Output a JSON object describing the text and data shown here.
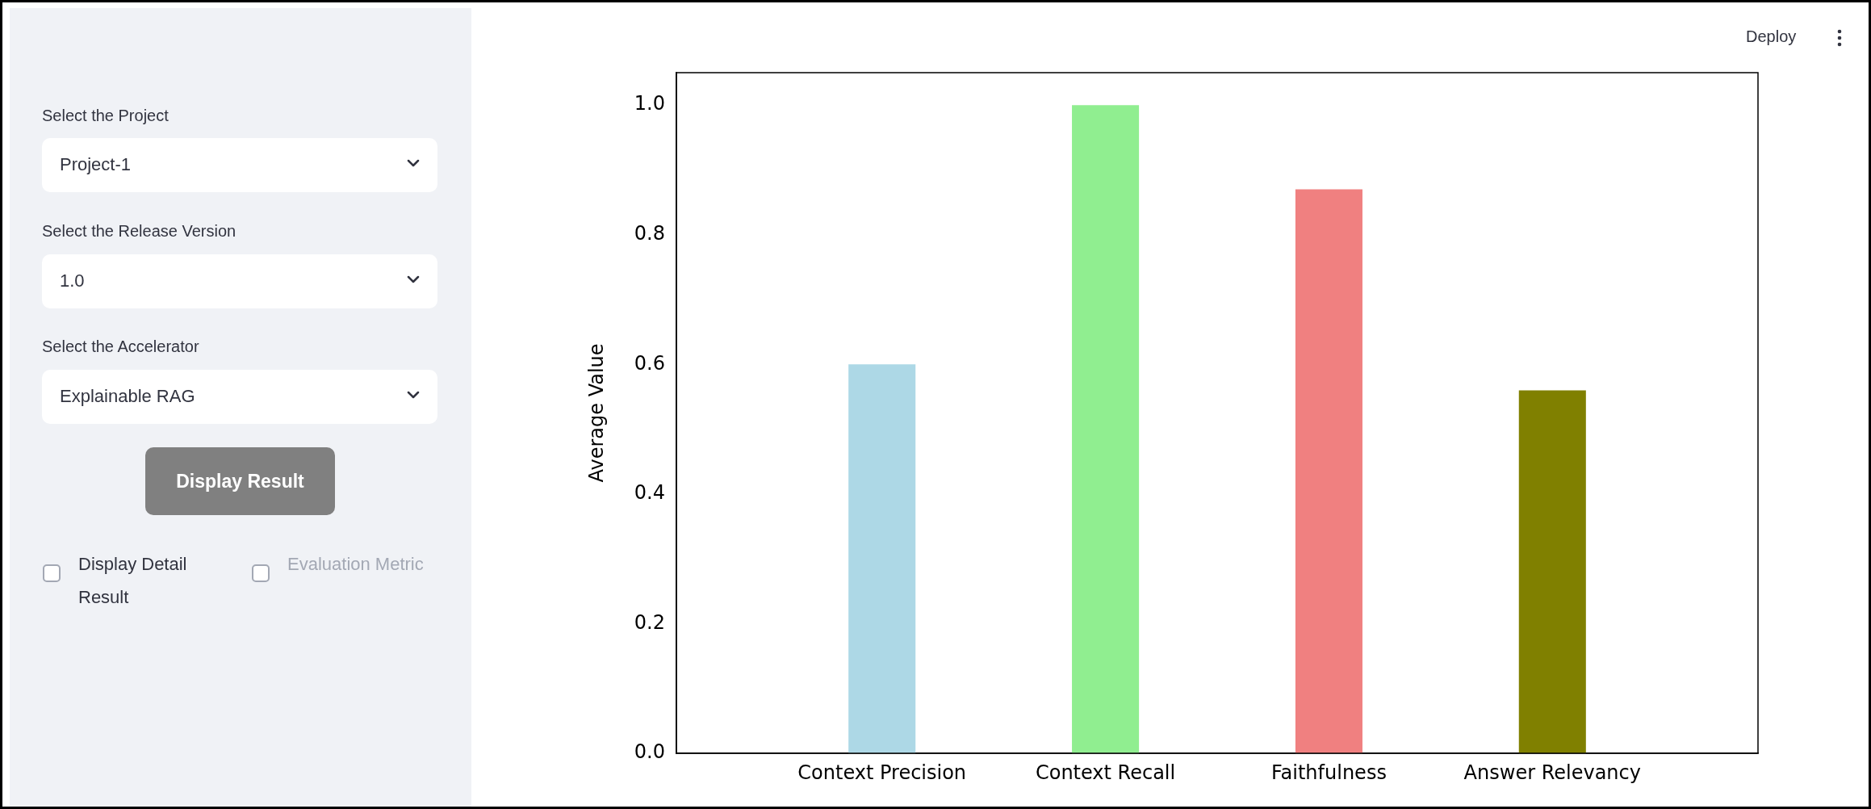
{
  "chart_data": {
    "type": "bar",
    "ylabel": "Average Value",
    "categories": [
      "Context Precision",
      "Context Recall",
      "Faithfulness",
      "Answer Relevancy"
    ],
    "values": [
      0.6,
      1.0,
      0.87,
      0.56
    ],
    "colors": [
      "#add8e6",
      "#90ee90",
      "#f08080",
      "#808000"
    ],
    "ylim": [
      0,
      1.05
    ],
    "yticks": [
      {
        "value": 0,
        "label": "0.0"
      },
      0.2,
      0.4,
      0.6,
      0.8,
      {
        "value": 1,
        "label": "1.0"
      }
    ],
    "annotations": [
      "Select the Project",
      "Project-1",
      "Select the Release Version",
      "1.0",
      "Select the Accelerator",
      "Explainable RAG",
      "Display Result",
      "Display Detail Result",
      "Evaluation Metric",
      "Deploy"
    ]
  }
}
